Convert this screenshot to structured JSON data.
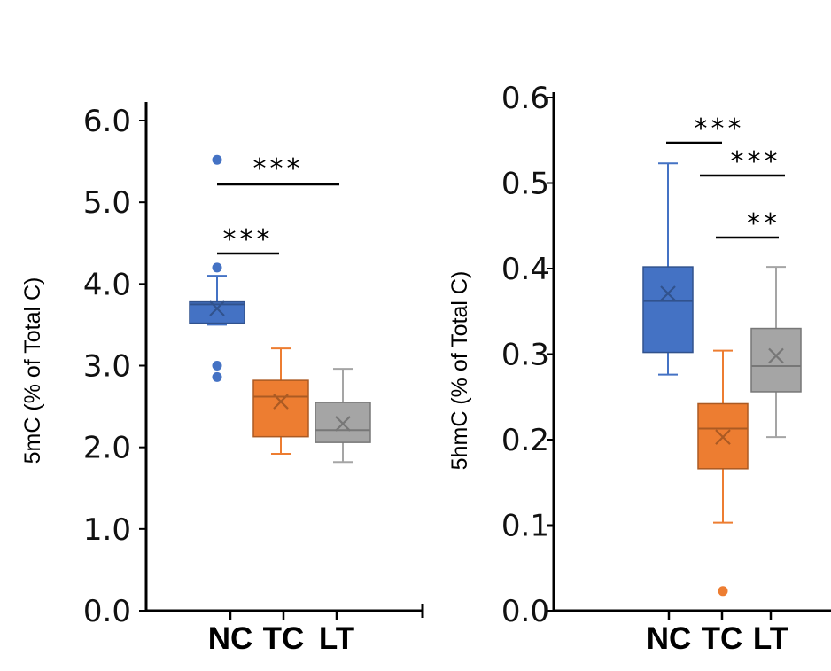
{
  "chart_data": [
    {
      "type": "box",
      "ylabel": "5mC (% of Total C)",
      "ylim": [
        0,
        6
      ],
      "yticks": [
        "0.0",
        "1.0",
        "2.0",
        "3.0",
        "4.0",
        "5.0",
        "6.0"
      ],
      "categories": [
        "NC",
        "TC",
        "LT"
      ],
      "colors": [
        "#4472C4",
        "#ED7D31",
        "#A5A5A5"
      ],
      "boxes": [
        {
          "category": "NC",
          "min": 3.5,
          "q1": 3.52,
          "median": 3.75,
          "q3": 3.78,
          "max": 4.1,
          "mean": 3.7,
          "outliers": [
            5.52,
            4.2,
            3.0,
            2.86
          ]
        },
        {
          "category": "TC",
          "min": 1.92,
          "q1": 2.13,
          "median": 2.62,
          "q3": 2.82,
          "max": 3.21,
          "mean": 2.56,
          "outliers": []
        },
        {
          "category": "LT",
          "min": 1.82,
          "q1": 2.06,
          "median": 2.21,
          "q3": 2.55,
          "max": 2.96,
          "mean": 2.29,
          "outliers": []
        }
      ],
      "significance": [
        {
          "from": "NC",
          "to": "LT",
          "label": "***"
        },
        {
          "from": "NC",
          "to": "TC",
          "label": "***"
        }
      ]
    },
    {
      "type": "box",
      "ylabel": "5hmC (% of Total C)",
      "ylim": [
        0,
        0.6
      ],
      "yticks": [
        "0.0",
        "0.1",
        "0.2",
        "0.3",
        "0.4",
        "0.5",
        "0.6"
      ],
      "categories": [
        "NC",
        "TC",
        "LT"
      ],
      "colors": [
        "#4472C4",
        "#ED7D31",
        "#A5A5A5"
      ],
      "boxes": [
        {
          "category": "NC",
          "min": 0.276,
          "q1": 0.302,
          "median": 0.362,
          "q3": 0.402,
          "max": 0.523,
          "mean": 0.371,
          "outliers": []
        },
        {
          "category": "TC",
          "min": 0.103,
          "q1": 0.166,
          "median": 0.213,
          "q3": 0.242,
          "max": 0.304,
          "mean": 0.203,
          "outliers": [
            0.023
          ]
        },
        {
          "category": "LT",
          "min": 0.203,
          "q1": 0.256,
          "median": 0.286,
          "q3": 0.33,
          "max": 0.402,
          "mean": 0.298,
          "outliers": []
        }
      ],
      "significance": [
        {
          "from": "NC",
          "to": "TC",
          "label": "***"
        },
        {
          "from": "TC",
          "to": "LT",
          "label": "***"
        },
        {
          "from": "TC",
          "to": "LT",
          "label": "**"
        }
      ]
    }
  ]
}
